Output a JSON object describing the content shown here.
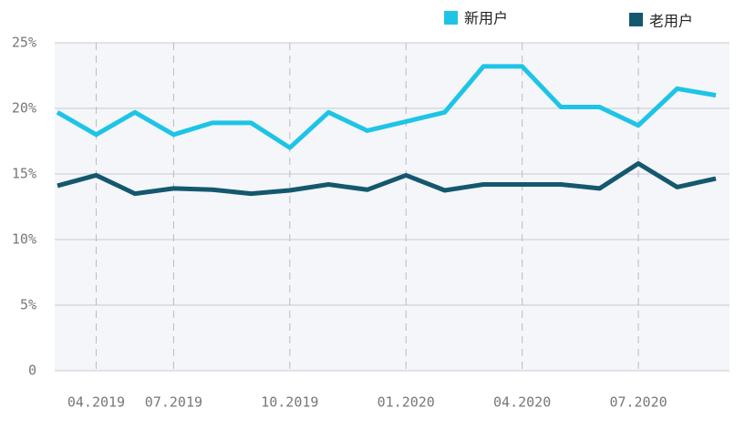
{
  "chart_data": {
    "type": "line",
    "categories": [
      null,
      "04.2019",
      null,
      "07.2019",
      null,
      null,
      "10.2019",
      null,
      null,
      "01.2020",
      null,
      null,
      "04.2020",
      null,
      null,
      "07.2020",
      null,
      null
    ],
    "series": [
      {
        "name": "新用户",
        "color": "#1ec4e6",
        "values": [
          19.7,
          18.0,
          19.7,
          18.0,
          18.9,
          18.9,
          17.0,
          19.7,
          18.3,
          19.0,
          19.7,
          23.2,
          23.2,
          20.1,
          20.1,
          18.7,
          21.5,
          21.0
        ]
      },
      {
        "name": "老用户",
        "color": "#14586e",
        "values": [
          14.1,
          14.9,
          13.5,
          13.9,
          13.8,
          13.5,
          13.75,
          14.2,
          13.8,
          14.9,
          13.75,
          14.2,
          14.2,
          14.2,
          13.9,
          15.8,
          14.0,
          14.65
        ]
      }
    ],
    "ylim": [
      0,
      25
    ],
    "yticks": [
      0,
      {
        "value": 5,
        "label": "5%"
      },
      {
        "value": 10,
        "label": "10%"
      },
      {
        "value": 15,
        "label": "15%"
      },
      {
        "value": 20,
        "label": "20%"
      },
      {
        "value": 25,
        "label": "25%"
      }
    ],
    "grid": true
  }
}
